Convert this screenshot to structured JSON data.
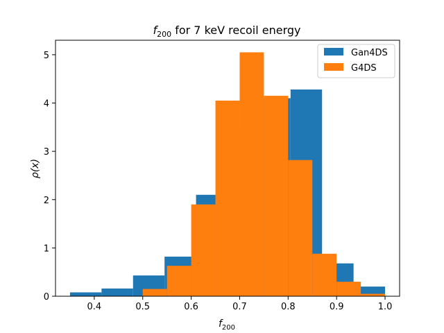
{
  "chart_data": {
    "type": "bar",
    "title": "f200 for 7 keV recoil energy",
    "title_main": "f",
    "title_sub": "200",
    "title_rest": " for 7 keV recoil energy",
    "xlabel_main": "f",
    "xlabel_sub": "200",
    "ylabel": "ρ(x)",
    "xlim": [
      0.32,
      1.03
    ],
    "ylim": [
      0,
      5.3
    ],
    "xticks": [
      "0.4",
      "0.5",
      "0.6",
      "0.7",
      "0.8",
      "0.9",
      "1.0"
    ],
    "yticks": [
      "0",
      "1",
      "2",
      "3",
      "4",
      "5"
    ],
    "legend_placement": "top-right",
    "grid": false,
    "series": [
      {
        "name": "Gan4DS",
        "color": "#1f77b4",
        "bins": [
          {
            "x0": 0.35,
            "x1": 0.415,
            "y": 0.08
          },
          {
            "x0": 0.415,
            "x1": 0.48,
            "y": 0.16
          },
          {
            "x0": 0.48,
            "x1": 0.545,
            "y": 0.43
          },
          {
            "x0": 0.545,
            "x1": 0.61,
            "y": 0.82
          },
          {
            "x0": 0.61,
            "x1": 0.675,
            "y": 2.1
          },
          {
            "x0": 0.675,
            "x1": 0.74,
            "y": 3.5
          },
          {
            "x0": 0.74,
            "x1": 0.805,
            "y": 4.1
          },
          {
            "x0": 0.805,
            "x1": 0.87,
            "y": 4.28
          },
          {
            "x0": 0.87,
            "x1": 0.935,
            "y": 0.68
          },
          {
            "x0": 0.935,
            "x1": 1.0,
            "y": 0.2
          }
        ]
      },
      {
        "name": "G4DS",
        "color": "#ff7f0e",
        "bins": [
          {
            "x0": 0.5,
            "x1": 0.55,
            "y": 0.15
          },
          {
            "x0": 0.55,
            "x1": 0.6,
            "y": 0.63
          },
          {
            "x0": 0.6,
            "x1": 0.65,
            "y": 1.9
          },
          {
            "x0": 0.65,
            "x1": 0.7,
            "y": 4.05
          },
          {
            "x0": 0.7,
            "x1": 0.75,
            "y": 5.05
          },
          {
            "x0": 0.75,
            "x1": 0.8,
            "y": 4.15
          },
          {
            "x0": 0.8,
            "x1": 0.85,
            "y": 2.82
          },
          {
            "x0": 0.85,
            "x1": 0.9,
            "y": 0.88
          },
          {
            "x0": 0.9,
            "x1": 0.95,
            "y": 0.3
          },
          {
            "x0": 0.95,
            "x1": 1.0,
            "y": 0.05
          }
        ]
      }
    ]
  }
}
